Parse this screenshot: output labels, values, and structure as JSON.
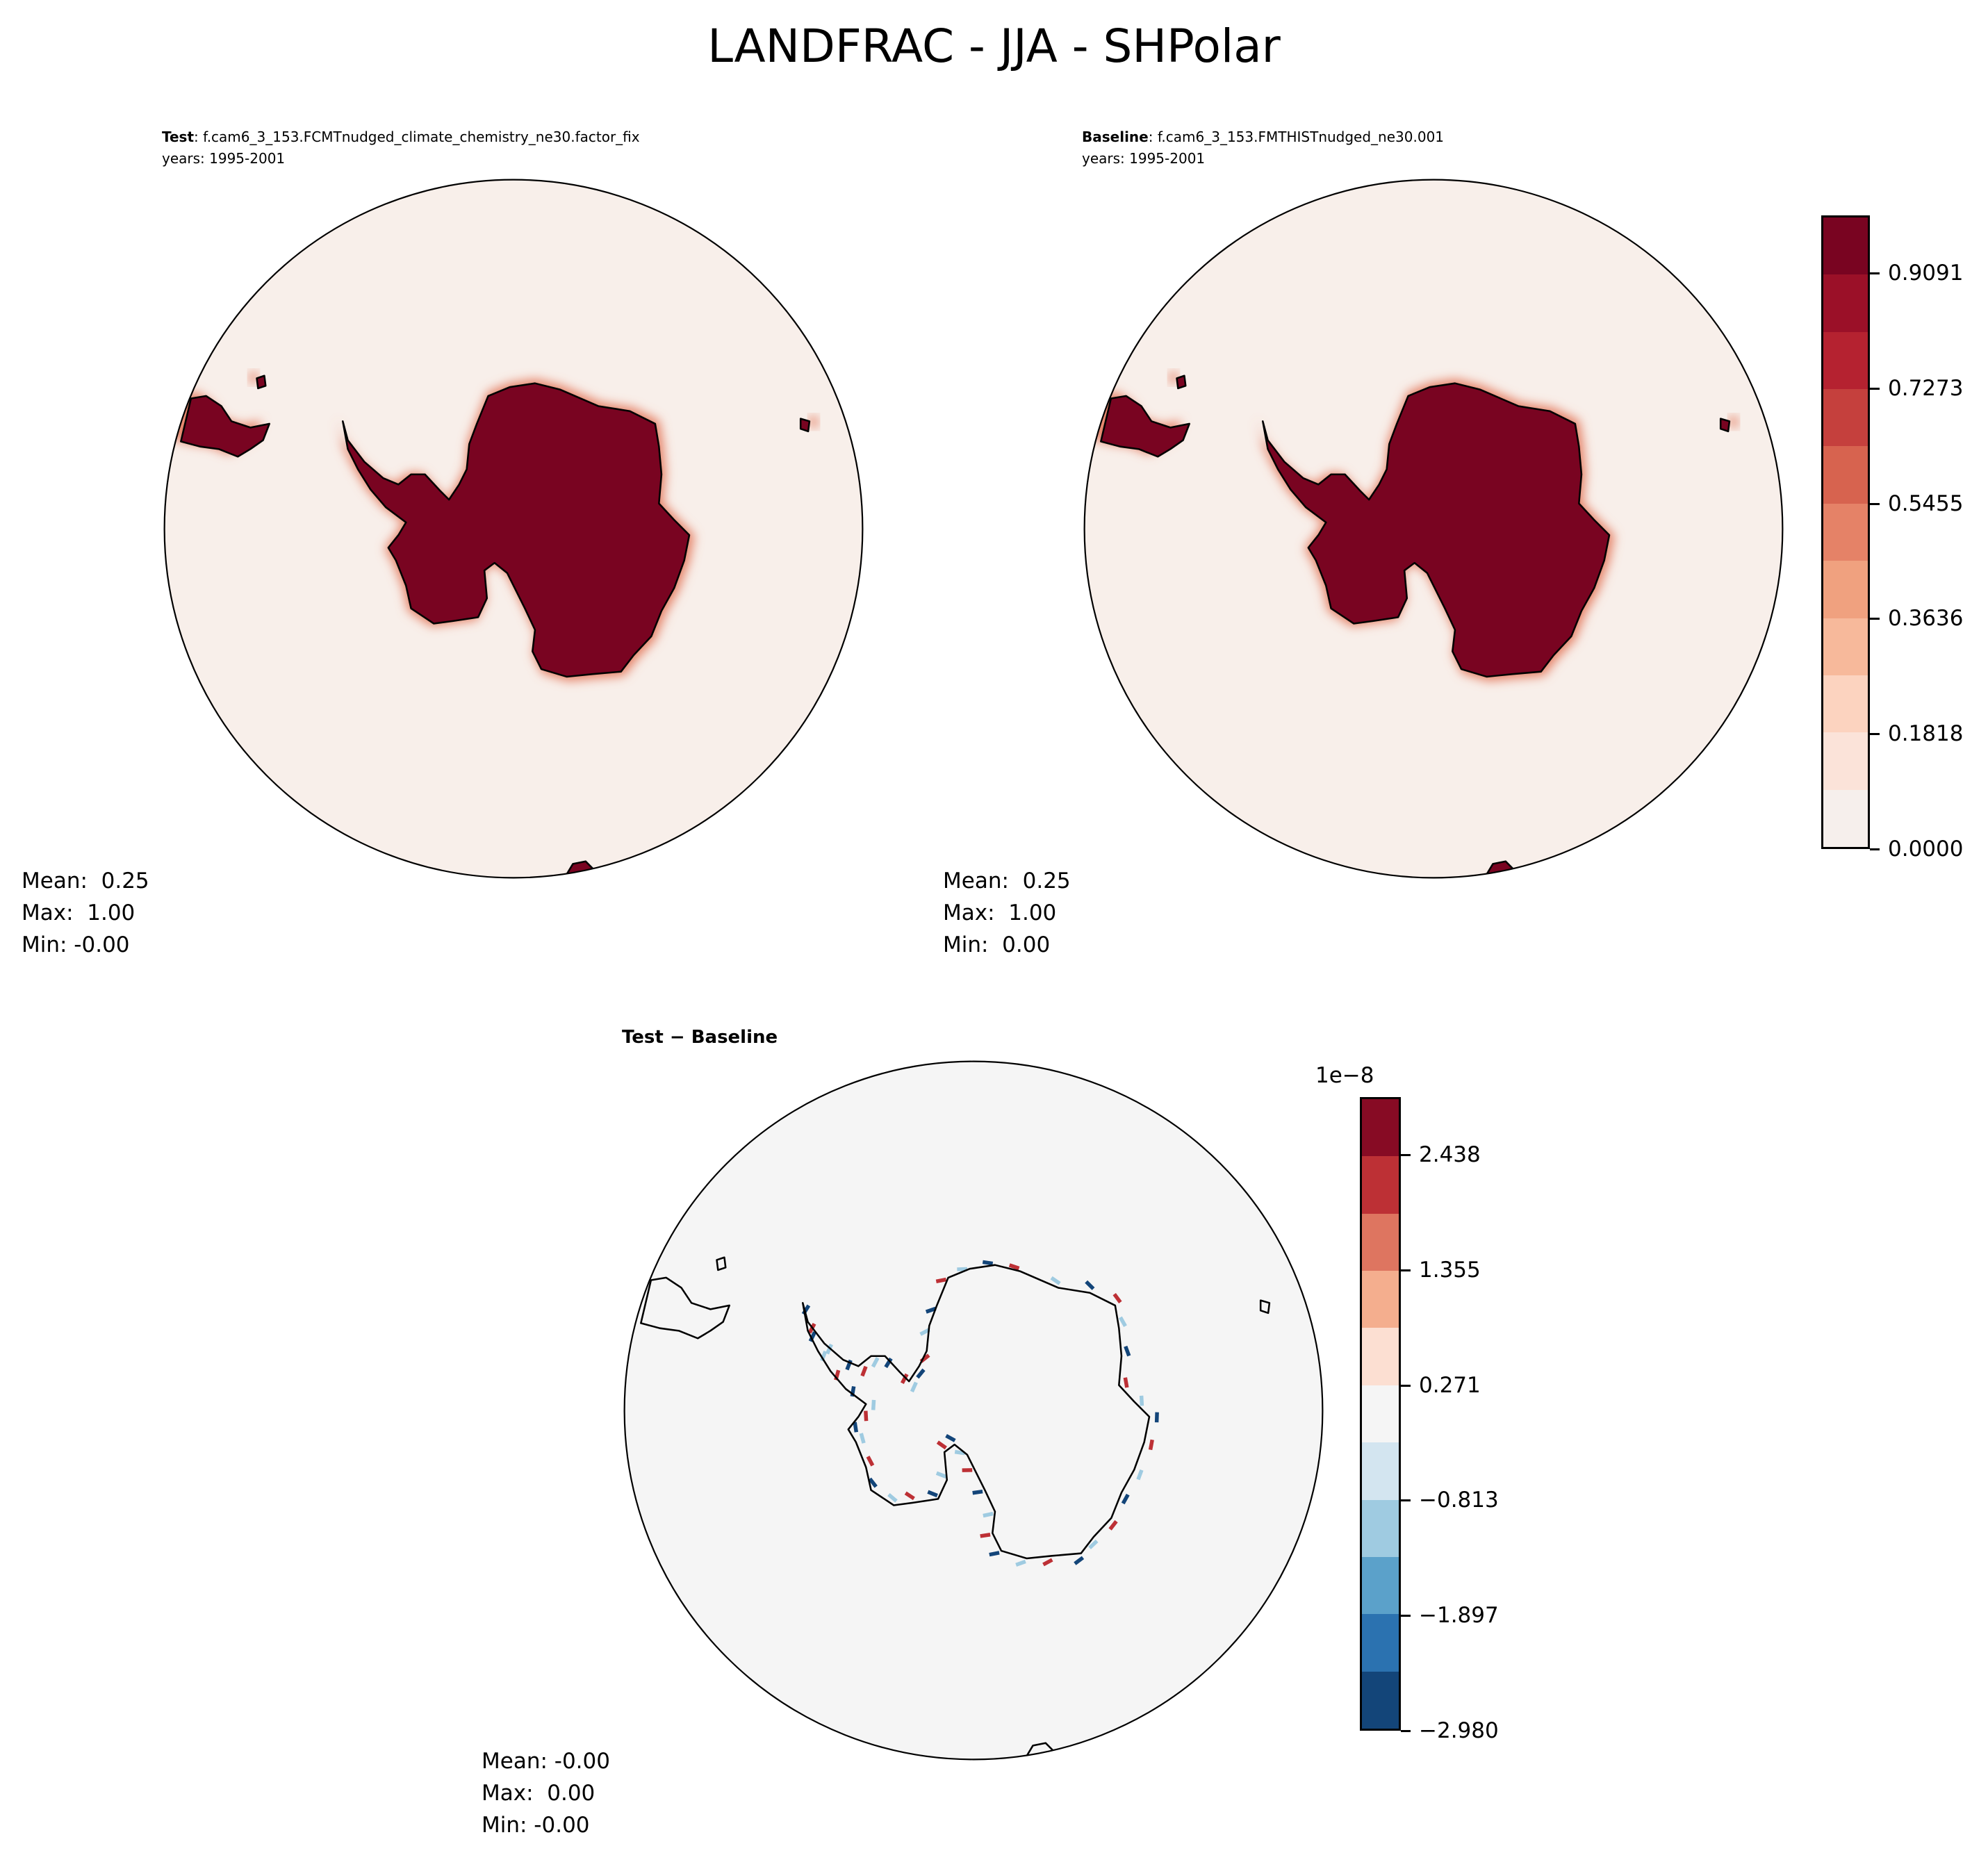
{
  "title": "LANDFRAC - JJA - SHPolar",
  "panels": {
    "test": {
      "label": "Test",
      "case": ": f.cam6_3_153.FCMTnudged_climate_chemistry_ne30.factor_fix",
      "years": "years: 1995-2001",
      "stats": {
        "mean": "Mean:  0.25",
        "max": "Max:  1.00",
        "min": "Min: -0.00"
      }
    },
    "baseline": {
      "label": "Baseline",
      "case": ": f.cam6_3_153.FMTHISTnudged_ne30.001",
      "years": "years: 1995-2001",
      "stats": {
        "mean": "Mean:  0.25",
        "max": "Max:  1.00",
        "min": "Min:  0.00"
      }
    },
    "diff": {
      "label": "Test − Baseline",
      "stats": {
        "mean": "Mean: -0.00",
        "max": "Max:  0.00",
        "min": "Min: -0.00"
      }
    }
  },
  "chart_data": [
    {
      "type": "heatmap",
      "projection": "south-polar-stereographic",
      "panels": [
        "Test",
        "Baseline"
      ],
      "colormap": "Reds (RdBu_r upper half)",
      "range": [
        0,
        1
      ],
      "levels": 11,
      "colorbar": {
        "ticks": [
          "0.0000",
          "0.1818",
          "0.3636",
          "0.5455",
          "0.7273",
          "0.9091"
        ],
        "colors": [
          "#f6efec",
          "#fbe3d9",
          "#fcd3bf",
          "#f7b99b",
          "#f0a17f",
          "#e58267",
          "#d7634f",
          "#c5403d",
          "#b52230",
          "#9b1028",
          "#790421"
        ]
      },
      "ocean_color": "#f8efea",
      "land_color": "#790421"
    },
    {
      "type": "heatmap",
      "projection": "south-polar-stereographic",
      "panels": [
        "Test − Baseline"
      ],
      "colormap": "RdBu_r",
      "range": [
        -2.98e-08,
        2.98e-08
      ],
      "levels": 11,
      "colorbar": {
        "offset_label": "1e−8",
        "ticks": [
          "−2.980",
          "−1.897",
          "−0.813",
          "0.271",
          "1.355",
          "2.438"
        ],
        "colors": [
          "#134579",
          "#2b72b0",
          "#5ba1ca",
          "#9fcbe1",
          "#d3e5f0",
          "#f5f5f5",
          "#fcdfd2",
          "#f4ae8e",
          "#de7560",
          "#bd3035",
          "#870b24"
        ]
      },
      "background_color": "#f5f5f5"
    }
  ]
}
